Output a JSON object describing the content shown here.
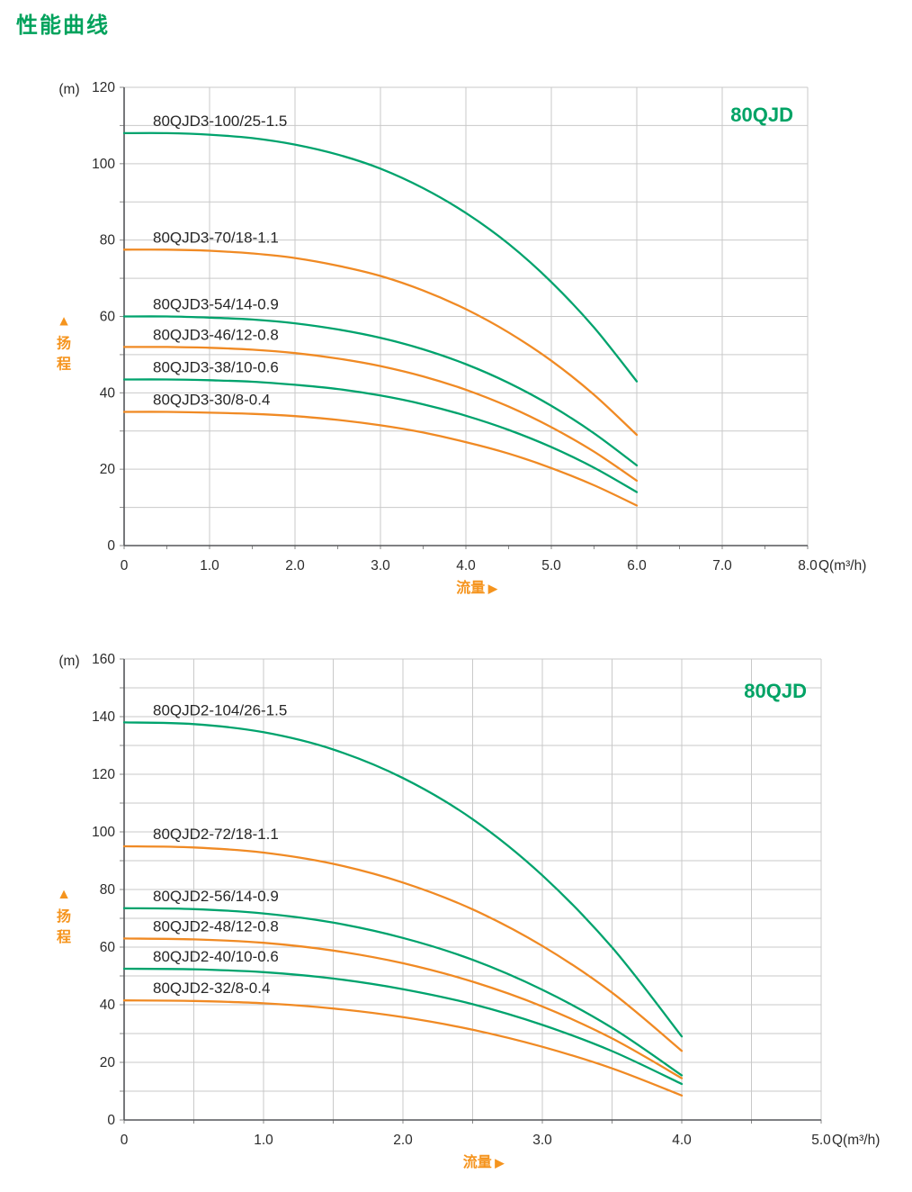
{
  "page": {
    "title": "性能曲线",
    "title_color": "#00a25c",
    "background": "#ffffff"
  },
  "colors": {
    "green": "#00a36d",
    "orange": "#f08a24",
    "grid": "#c9c9c9",
    "axis": "#55575a",
    "minor_tick": "#8a8a8a",
    "text": "#2b2b2b",
    "title_green": "#00a365",
    "label_orange": "#f5941e"
  },
  "chart_data": [
    {
      "type": "line",
      "title": "80QJD",
      "y_unit": "(m)",
      "y_axis_label": "扬程",
      "y_axis_marker": "▲",
      "x_axis_label": "流量",
      "x_axis_marker": "▶",
      "x_unit": "Q(m³/h)",
      "xlim": [
        0,
        8
      ],
      "ylim": [
        0,
        120
      ],
      "x_tick_step": 1.0,
      "y_tick_step": 20,
      "x_grid_step": 1.0,
      "y_grid_step": 10,
      "x_minor_step": 0.5,
      "y_minor_step": 10,
      "x_ticks": [
        "0",
        "1.0",
        "2.0",
        "3.0",
        "4.0",
        "5.0",
        "6.0",
        "7.0",
        "8.0"
      ],
      "y_ticks": [
        "0",
        "20",
        "40",
        "60",
        "80",
        "100",
        "120"
      ],
      "series": [
        {
          "name": "80QJD3-100/25-1.5",
          "color": "#00a36d",
          "x": [
            0,
            0.5,
            1,
            1.5,
            2,
            2.5,
            3,
            3.5,
            4,
            4.5,
            5,
            5.5,
            6
          ],
          "y": [
            108,
            108,
            107.6,
            106.7,
            105,
            102.4,
            98.7,
            93.6,
            87.1,
            79,
            69,
            57.1,
            43
          ]
        },
        {
          "name": "80QJD3-70/18-1.1",
          "color": "#f08a24",
          "x": [
            0,
            0.5,
            1,
            1.5,
            2,
            2.5,
            3,
            3.5,
            4,
            4.5,
            5,
            5.5,
            6
          ],
          "y": [
            77.5,
            77.5,
            77.2,
            76.5,
            75.3,
            73.3,
            70.6,
            66.8,
            61.9,
            55.8,
            48.4,
            39.5,
            29
          ]
        },
        {
          "name": "80QJD3-54/14-0.9",
          "color": "#00a36d",
          "x": [
            0,
            0.5,
            1,
            1.5,
            2,
            2.5,
            3,
            3.5,
            4,
            4.5,
            5,
            5.5,
            6
          ],
          "y": [
            60,
            60,
            59.7,
            59.2,
            58.2,
            56.6,
            54.4,
            51.4,
            47.5,
            42.6,
            36.6,
            29.4,
            21
          ]
        },
        {
          "name": "80QJD3-46/12-0.8",
          "color": "#f08a24",
          "x": [
            0,
            0.5,
            1,
            1.5,
            2,
            2.5,
            3,
            3.5,
            4,
            4.5,
            5,
            5.5,
            6
          ],
          "y": [
            52,
            52,
            51.8,
            51.3,
            50.4,
            49,
            47,
            44.3,
            40.8,
            36.4,
            31,
            24.6,
            17
          ]
        },
        {
          "name": "80QJD3-38/10-0.6",
          "color": "#00a36d",
          "x": [
            0,
            0.5,
            1,
            1.5,
            2,
            2.5,
            3,
            3.5,
            4,
            4.5,
            5,
            5.5,
            6
          ],
          "y": [
            43.5,
            43.5,
            43.3,
            42.9,
            42.1,
            41,
            39.3,
            37,
            34,
            30.3,
            25.8,
            20.4,
            14
          ]
        },
        {
          "name": "80QJD3-30/8-0.4",
          "color": "#f08a24",
          "x": [
            0,
            0.5,
            1,
            1.5,
            2,
            2.5,
            3,
            3.5,
            4,
            4.5,
            5,
            5.5,
            6
          ],
          "y": [
            35,
            35,
            34.8,
            34.5,
            33.9,
            32.9,
            31.5,
            29.6,
            27.1,
            24.1,
            20.3,
            15.8,
            10.5
          ]
        }
      ]
    },
    {
      "type": "line",
      "title": "80QJD",
      "y_unit": "(m)",
      "y_axis_label": "扬程",
      "y_axis_marker": "▲",
      "x_axis_label": "流量",
      "x_axis_marker": "▶",
      "x_unit": "Q(m³/h)",
      "xlim": [
        0,
        5
      ],
      "ylim": [
        0,
        160
      ],
      "x_tick_step": 1.0,
      "y_tick_step": 20,
      "x_grid_step": 0.5,
      "y_grid_step": 10,
      "x_minor_step": 0.5,
      "y_minor_step": 10,
      "x_ticks": [
        "0",
        "1.0",
        "2.0",
        "3.0",
        "4.0",
        "5.0"
      ],
      "y_ticks": [
        "0",
        "20",
        "40",
        "60",
        "80",
        "100",
        "120",
        "140",
        "160"
      ],
      "series": [
        {
          "name": "80QJD2-104/26-1.5",
          "color": "#00a36d",
          "x": [
            0,
            0.5,
            1,
            1.5,
            2,
            2.5,
            3,
            3.5,
            4
          ],
          "y": [
            138,
            137.4,
            134.6,
            128.6,
            118.7,
            104.4,
            84.9,
            59.9,
            29
          ]
        },
        {
          "name": "80QJD2-72/18-1.1",
          "color": "#f08a24",
          "x": [
            0,
            0.5,
            1,
            1.5,
            2,
            2.5,
            3,
            3.5,
            4
          ],
          "y": [
            95,
            94.6,
            92.8,
            88.9,
            82.4,
            73.1,
            60.4,
            44.2,
            24
          ]
        },
        {
          "name": "80QJD2-56/14-0.9",
          "color": "#00a36d",
          "x": [
            0,
            0.5,
            1,
            1.5,
            2,
            2.5,
            3,
            3.5,
            4
          ],
          "y": [
            73.5,
            73.2,
            71.7,
            68.5,
            63.2,
            55.6,
            45.2,
            32,
            15.5
          ]
        },
        {
          "name": "80QJD2-48/12-0.8",
          "color": "#f08a24",
          "x": [
            0,
            0.5,
            1,
            1.5,
            2,
            2.5,
            3,
            3.5,
            4
          ],
          "y": [
            63,
            62.7,
            61.5,
            58.8,
            54.4,
            48,
            39.4,
            28.3,
            14.5
          ]
        },
        {
          "name": "80QJD2-40/10-0.6",
          "color": "#00a36d",
          "x": [
            0,
            0.5,
            1,
            1.5,
            2,
            2.5,
            3,
            3.5,
            4
          ],
          "y": [
            52.5,
            52.3,
            51.3,
            49.1,
            45.4,
            40.2,
            33,
            23.9,
            12.5
          ]
        },
        {
          "name": "80QJD2-32/8-0.4",
          "color": "#f08a24",
          "x": [
            0,
            0.5,
            1,
            1.5,
            2,
            2.5,
            3,
            3.5,
            4
          ],
          "y": [
            41.5,
            41.3,
            40.5,
            38.7,
            35.7,
            31.3,
            25.4,
            17.9,
            8.5
          ]
        }
      ]
    }
  ]
}
